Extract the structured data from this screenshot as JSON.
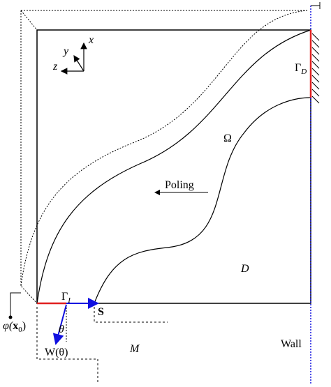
{
  "axes": {
    "x": "x",
    "y": "y",
    "z": "z"
  },
  "regions": {
    "omega": "Ω",
    "design": "D",
    "mold": "M",
    "wall": "Wall"
  },
  "poling": "Poling",
  "gamma_d": {
    "symbol": "Γ",
    "subscript": "D"
  },
  "gamma_i": {
    "symbol": "Γ",
    "subscript": "I"
  },
  "force": "S",
  "angle": "θ",
  "work": "W(θ)",
  "potential": {
    "symbol": "φ(",
    "argument": "x",
    "subscript": "0",
    "close": ")"
  }
}
